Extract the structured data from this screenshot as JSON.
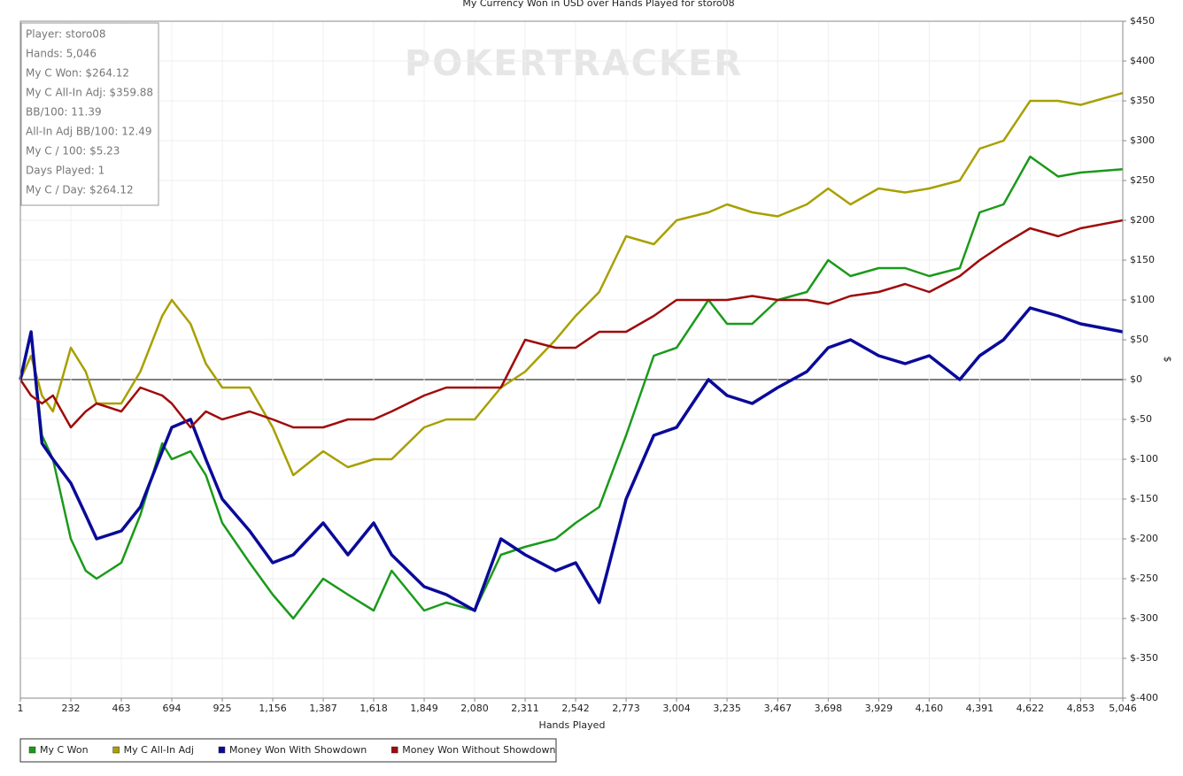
{
  "chart_data": {
    "type": "line",
    "title": "My Currency Won in USD over Hands Played for storo08",
    "watermark": "POKERTRACKER",
    "info_box": [
      "Player: storo08",
      "Hands: 5,046",
      "My C Won: $264.12",
      "My C All-In Adj: $359.88",
      "BB/100: 11.39",
      "All-In Adj BB/100: 12.49",
      "My C / 100: $5.23",
      "Days Played: 1",
      "My C / Day: $264.12"
    ],
    "x_label": "Hands Played",
    "y_label": "$",
    "xlim": [
      1,
      5046
    ],
    "xticks": [
      1,
      232,
      463,
      694,
      925,
      {
        "value": 1156,
        "label": "1,156"
      },
      {
        "value": 1387,
        "label": "1,387"
      },
      {
        "value": 1618,
        "label": "1,618"
      },
      {
        "value": 1849,
        "label": "1,849"
      },
      {
        "value": 2080,
        "label": "2,080"
      },
      {
        "value": 2311,
        "label": "2,311"
      },
      {
        "value": 2542,
        "label": "2,542"
      },
      {
        "value": 2773,
        "label": "2,773"
      },
      {
        "value": 3004,
        "label": "3,004"
      },
      {
        "value": 3235,
        "label": "3,235"
      },
      {
        "value": 3467,
        "label": "3,467"
      },
      {
        "value": 3698,
        "label": "3,698"
      },
      {
        "value": 3929,
        "label": "3,929"
      },
      {
        "value": 4160,
        "label": "4,160"
      },
      {
        "value": 4391,
        "label": "4,391"
      },
      {
        "value": 4622,
        "label": "4,622"
      },
      {
        "value": 4853,
        "label": "4,853"
      },
      {
        "value": 5046,
        "label": "5,046"
      }
    ],
    "ylim": [
      -400,
      450
    ],
    "yticks": [
      {
        "value": -400,
        "label": "$-400"
      },
      {
        "value": -350,
        "label": "$-350"
      },
      {
        "value": -300,
        "label": "$-300"
      },
      {
        "value": -250,
        "label": "$-250"
      },
      {
        "value": -200,
        "label": "$-200"
      },
      {
        "value": -150,
        "label": "$-150"
      },
      {
        "value": -100,
        "label": "$-100"
      },
      {
        "value": -50,
        "label": "$-50"
      },
      {
        "value": 0,
        "label": "$0"
      },
      {
        "value": 50,
        "label": "$50"
      },
      {
        "value": 100,
        "label": "$100"
      },
      {
        "value": 150,
        "label": "$150"
      },
      {
        "value": 200,
        "label": "$200"
      },
      {
        "value": 250,
        "label": "$250"
      },
      {
        "value": 300,
        "label": "$300"
      },
      {
        "value": 350,
        "label": "$350"
      },
      {
        "value": 400,
        "label": "$400"
      },
      {
        "value": 450,
        "label": "$450"
      }
    ],
    "y_axis_side": "right",
    "grid": true,
    "legend": "bottom-left",
    "x": [
      1,
      50,
      100,
      150,
      232,
      300,
      350,
      463,
      550,
      650,
      694,
      780,
      850,
      925,
      1050,
      1156,
      1250,
      1387,
      1500,
      1618,
      1700,
      1849,
      1950,
      2080,
      2200,
      2311,
      2450,
      2542,
      2650,
      2773,
      2900,
      3004,
      3150,
      3235,
      3350,
      3467,
      3600,
      3698,
      3800,
      3929,
      4050,
      4160,
      4300,
      4391,
      4500,
      4622,
      4750,
      4853,
      5046
    ],
    "series": [
      {
        "name": "My C Won",
        "color": "#1a9a1a",
        "values": [
          0,
          60,
          -70,
          -100,
          -200,
          -240,
          -250,
          -230,
          -170,
          -80,
          -100,
          -90,
          -120,
          -180,
          -230,
          -270,
          -300,
          -250,
          -270,
          -290,
          -240,
          -290,
          -280,
          -290,
          -220,
          -210,
          -200,
          -180,
          -160,
          -70,
          30,
          40,
          100,
          70,
          70,
          100,
          110,
          150,
          130,
          140,
          140,
          130,
          140,
          210,
          220,
          280,
          255,
          260,
          264.12
        ]
      },
      {
        "name": "My C All-In Adj",
        "color": "#a8a000",
        "values": [
          0,
          30,
          -20,
          -40,
          40,
          10,
          -30,
          -30,
          10,
          80,
          100,
          70,
          20,
          -10,
          -10,
          -60,
          -120,
          -90,
          -110,
          -100,
          -100,
          -60,
          -50,
          -50,
          -10,
          10,
          50,
          80,
          110,
          180,
          170,
          200,
          210,
          220,
          210,
          205,
          220,
          240,
          220,
          240,
          235,
          240,
          250,
          290,
          300,
          350,
          350,
          345,
          359.88
        ]
      },
      {
        "name": "Money Won With Showdown",
        "color": "#0a0a9a",
        "values": [
          0,
          60,
          -80,
          -100,
          -130,
          -170,
          -200,
          -190,
          -160,
          -90,
          -60,
          -50,
          -100,
          -150,
          -190,
          -230,
          -220,
          -180,
          -220,
          -180,
          -220,
          -260,
          -270,
          -290,
          -200,
          -220,
          -240,
          -230,
          -280,
          -150,
          -70,
          -60,
          0,
          -20,
          -30,
          -10,
          10,
          40,
          50,
          30,
          20,
          30,
          0,
          30,
          50,
          90,
          80,
          70,
          60
        ]
      },
      {
        "name": "Money Won Without Showdown",
        "color": "#a00a0a",
        "values": [
          0,
          -20,
          -30,
          -20,
          -60,
          -40,
          -30,
          -40,
          -10,
          -20,
          -30,
          -60,
          -40,
          -50,
          -40,
          -50,
          -60,
          -60,
          -50,
          -50,
          -40,
          -20,
          -10,
          -10,
          -10,
          50,
          40,
          40,
          60,
          60,
          80,
          100,
          100,
          100,
          105,
          100,
          100,
          95,
          105,
          110,
          120,
          110,
          130,
          150,
          170,
          190,
          180,
          190,
          200
        ]
      }
    ]
  }
}
